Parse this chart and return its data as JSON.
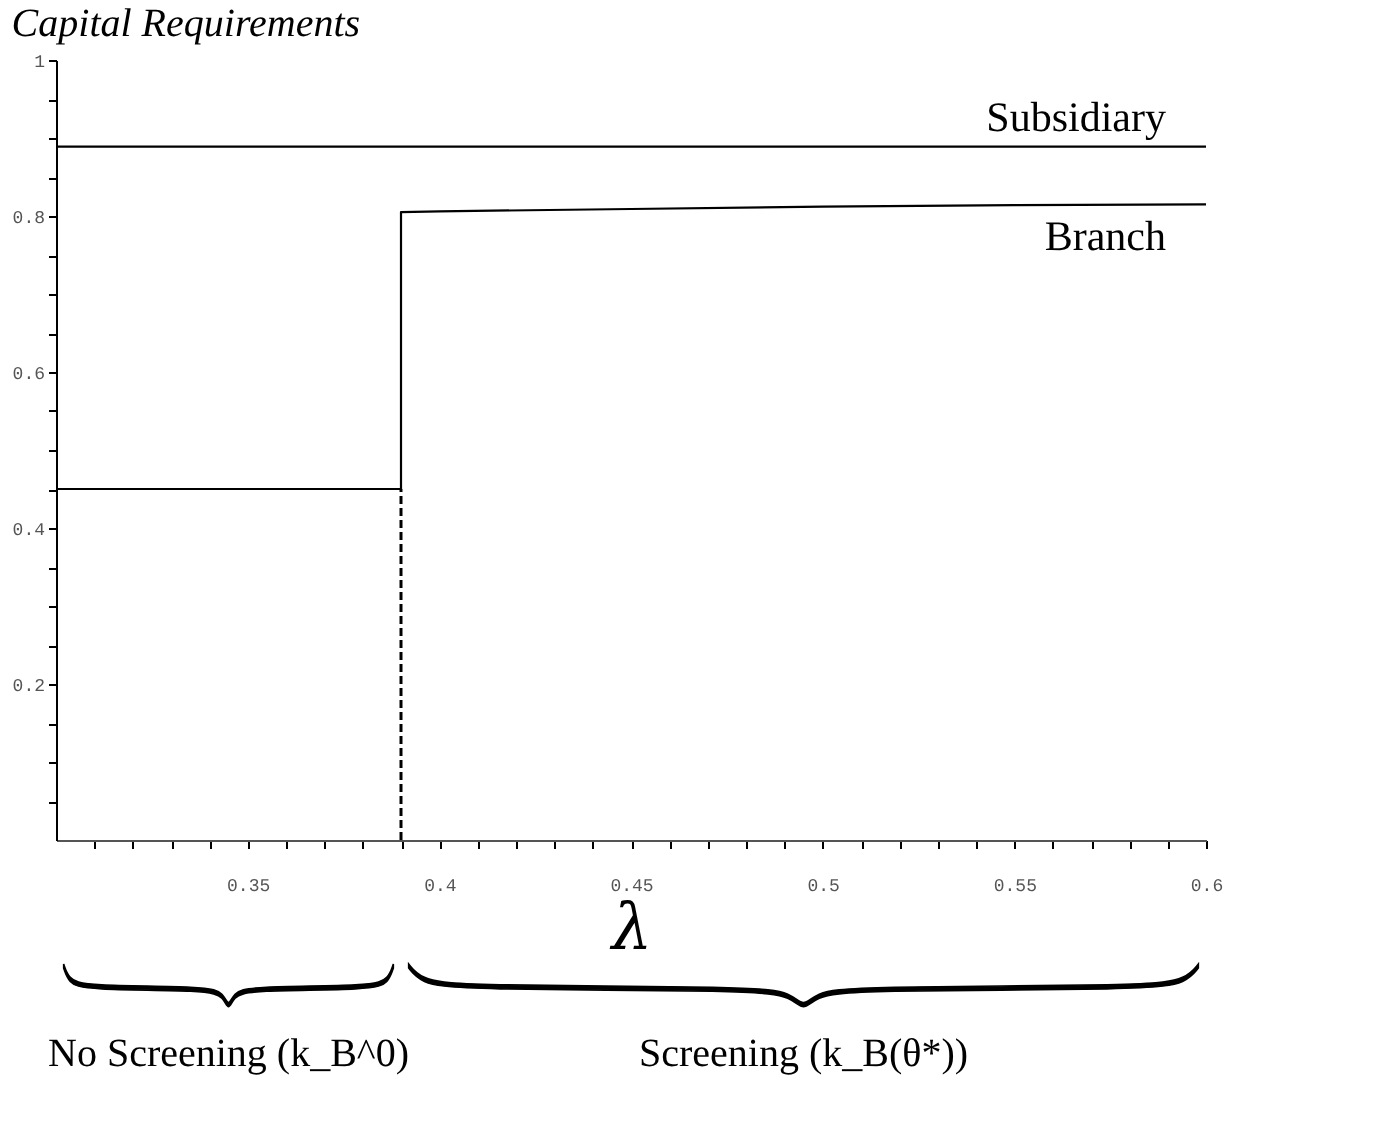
{
  "chart_data": {
    "type": "line",
    "title": "Capital Requirements",
    "xlabel": "λ",
    "series": [
      {
        "name": "Subsidiary",
        "color": "#000000",
        "x": [
          0.3,
          0.6
        ],
        "values": [
          0.889,
          0.889
        ]
      },
      {
        "name": "Branch",
        "color": "#000000",
        "x": [
          0.3,
          0.39,
          0.39,
          0.4,
          0.45,
          0.5,
          0.55,
          0.6
        ],
        "values": [
          0.45,
          0.45,
          0.805,
          0.806,
          0.809,
          0.812,
          0.814,
          0.815
        ]
      }
    ],
    "ref_lines": [
      {
        "axis": "x",
        "value": 0.39,
        "color": "#000000",
        "line_style": "dashed"
      }
    ],
    "annotations": [
      "No Screening (k_B^0)",
      "Screening (k_B(θ*))"
    ],
    "xlim": [
      0.3,
      0.6
    ],
    "ylim": [
      0,
      1
    ],
    "xticks": [
      {
        "value": 0.31,
        "label": null
      },
      {
        "value": 0.32,
        "label": null
      },
      {
        "value": 0.33,
        "label": null
      },
      {
        "value": 0.34,
        "label": null
      },
      0.35,
      {
        "value": 0.36,
        "label": null
      },
      {
        "value": 0.37,
        "label": null
      },
      {
        "value": 0.38,
        "label": null
      },
      {
        "value": 0.39,
        "label": null
      },
      0.4,
      {
        "value": 0.41,
        "label": null
      },
      {
        "value": 0.42,
        "label": null
      },
      {
        "value": 0.43,
        "label": null
      },
      {
        "value": 0.44,
        "label": null
      },
      0.45,
      {
        "value": 0.46,
        "label": null
      },
      {
        "value": 0.47,
        "label": null
      },
      {
        "value": 0.48,
        "label": null
      },
      {
        "value": 0.49,
        "label": null
      },
      0.5,
      {
        "value": 0.51,
        "label": null
      },
      {
        "value": 0.52,
        "label": null
      },
      {
        "value": 0.53,
        "label": null
      },
      {
        "value": 0.54,
        "label": null
      },
      0.55,
      {
        "value": 0.56,
        "label": null
      },
      {
        "value": 0.57,
        "label": null
      },
      {
        "value": 0.58,
        "label": null
      },
      {
        "value": 0.59,
        "label": null
      },
      0.6
    ],
    "yticks": [
      {
        "value": 0.05,
        "label": null
      },
      {
        "value": 0.1,
        "label": null
      },
      {
        "value": 0.15,
        "label": null
      },
      0.2,
      {
        "value": 0.25,
        "label": null
      },
      {
        "value": 0.3,
        "label": null
      },
      {
        "value": 0.35,
        "label": null
      },
      0.4,
      {
        "value": 0.45,
        "label": null
      },
      {
        "value": 0.5,
        "label": null
      },
      {
        "value": 0.55,
        "label": null
      },
      0.6,
      {
        "value": 0.65,
        "label": null
      },
      {
        "value": 0.7,
        "label": null
      },
      {
        "value": 0.75,
        "label": null
      },
      0.8,
      {
        "value": 0.85,
        "label": null
      },
      {
        "value": 0.9,
        "label": null
      },
      {
        "value": 0.95,
        "label": null
      },
      1
    ],
    "grid": false,
    "marker": "none",
    "line_style": "solid"
  }
}
